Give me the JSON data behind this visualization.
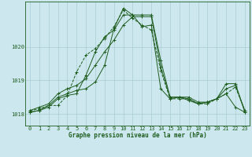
{
  "title": "Graphe pression niveau de la mer (hPa)",
  "bg_color": "#cce8ee",
  "grid_color": "#aaccd4",
  "line_color": "#1e5c1e",
  "xlim": [
    -0.5,
    23.5
  ],
  "ylim": [
    1017.65,
    1021.35
  ],
  "yticks": [
    1018,
    1019,
    1020
  ],
  "xticks": [
    0,
    1,
    2,
    3,
    4,
    5,
    6,
    7,
    8,
    9,
    10,
    11,
    12,
    13,
    14,
    15,
    16,
    17,
    18,
    19,
    20,
    21,
    22,
    23
  ],
  "series": [
    {
      "y": [
        1018.1,
        1018.15,
        1018.25,
        1018.25,
        1018.55,
        1019.25,
        1019.75,
        1019.95,
        1020.25,
        1020.6,
        1021.1,
        1020.85,
        1020.65,
        1020.5,
        1019.3,
        1018.45,
        1018.45,
        1018.45,
        1018.3,
        1018.3,
        1018.45,
        1018.6,
        1018.8,
        1018.1
      ],
      "style": "dashed"
    },
    {
      "y": [
        1018.1,
        1018.2,
        1018.3,
        1018.6,
        1018.75,
        1018.85,
        1019.05,
        1019.45,
        1019.85,
        1020.2,
        1020.65,
        1020.9,
        1020.9,
        1020.9,
        1019.4,
        1018.5,
        1018.5,
        1018.45,
        1018.3,
        1018.35,
        1018.45,
        1018.75,
        1018.85,
        1018.1
      ],
      "style": "solid"
    },
    {
      "y": [
        1018.05,
        1018.1,
        1018.25,
        1018.5,
        1018.6,
        1018.7,
        1018.75,
        1018.95,
        1019.45,
        1020.55,
        1021.15,
        1020.95,
        1020.6,
        1020.65,
        1018.75,
        1018.45,
        1018.5,
        1018.5,
        1018.35,
        1018.35,
        1018.45,
        1018.6,
        1018.2,
        1018.05
      ],
      "style": "solid"
    },
    {
      "y": [
        1018.05,
        1018.1,
        1018.2,
        1018.45,
        1018.55,
        1018.6,
        1019.15,
        1019.85,
        1020.3,
        1020.5,
        1020.95,
        1020.95,
        1020.95,
        1020.95,
        1019.6,
        1018.5,
        1018.5,
        1018.4,
        1018.3,
        1018.35,
        1018.45,
        1018.9,
        1018.9,
        1018.05
      ],
      "style": "solid"
    }
  ],
  "font_family": "monospace"
}
